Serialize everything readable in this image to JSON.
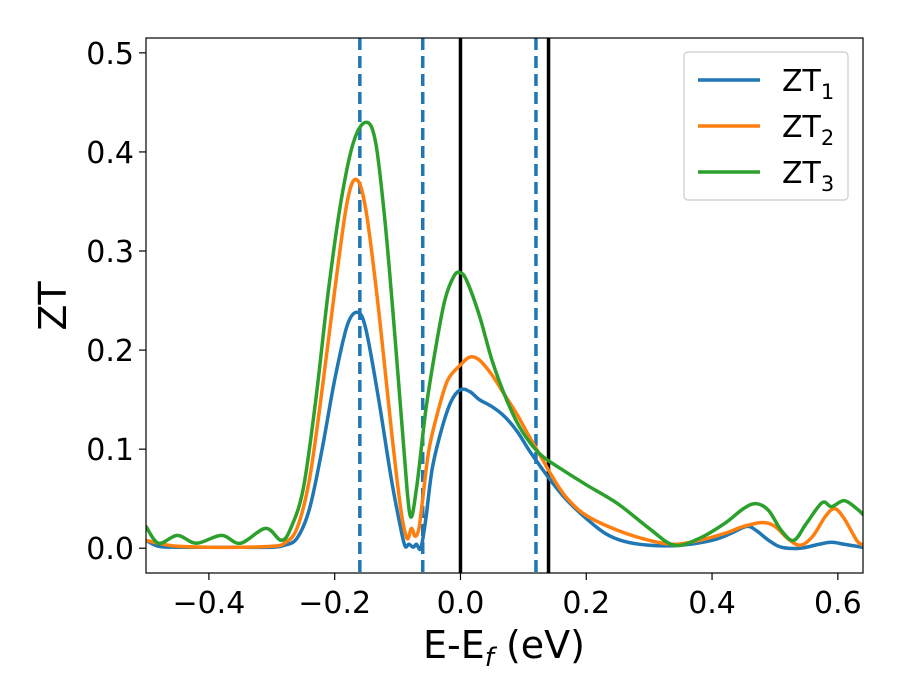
{
  "chart_data": {
    "type": "line",
    "title": "",
    "xlabel": {
      "main": "E-E",
      "sub": "f",
      "unit": " (eV)"
    },
    "ylabel": "ZT",
    "xlim": [
      -0.5,
      0.64
    ],
    "ylim": [
      -0.025,
      0.515
    ],
    "xticks": [
      -0.4,
      -0.2,
      0.0,
      0.2,
      0.4,
      0.6
    ],
    "xtick_labels": [
      "−0.4",
      "−0.2",
      "0.0",
      "0.2",
      "0.4",
      "0.6"
    ],
    "yticks": [
      0.0,
      0.1,
      0.2,
      0.3,
      0.4,
      0.5
    ],
    "ytick_labels": [
      "0.0",
      "0.1",
      "0.2",
      "0.3",
      "0.4",
      "0.5"
    ],
    "grid": false,
    "legend": "top-right",
    "series": [
      {
        "name": "ZT",
        "subscript": "1",
        "color": "#1f77b4",
        "points": [
          [
            -0.5,
            0.008
          ],
          [
            -0.48,
            0.002
          ],
          [
            -0.45,
            0.001
          ],
          [
            -0.4,
            0.001
          ],
          [
            -0.35,
            0.001
          ],
          [
            -0.3,
            0.001
          ],
          [
            -0.28,
            0.003
          ],
          [
            -0.26,
            0.01
          ],
          [
            -0.24,
            0.04
          ],
          [
            -0.22,
            0.1
          ],
          [
            -0.2,
            0.17
          ],
          [
            -0.18,
            0.225
          ],
          [
            -0.163,
            0.238
          ],
          [
            -0.15,
            0.22
          ],
          [
            -0.13,
            0.15
          ],
          [
            -0.11,
            0.07
          ],
          [
            -0.095,
            0.02
          ],
          [
            -0.088,
            0.002
          ],
          [
            -0.082,
            0.004
          ],
          [
            -0.075,
            0.001
          ],
          [
            -0.07,
            0.004
          ],
          [
            -0.063,
            0.0
          ],
          [
            -0.055,
            0.03
          ],
          [
            -0.045,
            0.08
          ],
          [
            -0.03,
            0.12
          ],
          [
            -0.015,
            0.148
          ],
          [
            0.0,
            0.16
          ],
          [
            0.015,
            0.158
          ],
          [
            0.03,
            0.15
          ],
          [
            0.05,
            0.143
          ],
          [
            0.07,
            0.133
          ],
          [
            0.09,
            0.118
          ],
          [
            0.11,
            0.098
          ],
          [
            0.13,
            0.08
          ],
          [
            0.15,
            0.063
          ],
          [
            0.17,
            0.048
          ],
          [
            0.2,
            0.03
          ],
          [
            0.23,
            0.015
          ],
          [
            0.26,
            0.007
          ],
          [
            0.3,
            0.003
          ],
          [
            0.35,
            0.003
          ],
          [
            0.4,
            0.008
          ],
          [
            0.43,
            0.015
          ],
          [
            0.455,
            0.022
          ],
          [
            0.47,
            0.018
          ],
          [
            0.49,
            0.008
          ],
          [
            0.51,
            0.001
          ],
          [
            0.54,
            0.0
          ],
          [
            0.57,
            0.004
          ],
          [
            0.59,
            0.006
          ],
          [
            0.61,
            0.004
          ],
          [
            0.64,
            0.001
          ]
        ]
      },
      {
        "name": "ZT",
        "subscript": "2",
        "color": "#ff7f0e",
        "points": [
          [
            -0.5,
            0.008
          ],
          [
            -0.48,
            0.005
          ],
          [
            -0.45,
            0.002
          ],
          [
            -0.4,
            0.001
          ],
          [
            -0.35,
            0.001
          ],
          [
            -0.3,
            0.002
          ],
          [
            -0.28,
            0.005
          ],
          [
            -0.26,
            0.02
          ],
          [
            -0.24,
            0.07
          ],
          [
            -0.22,
            0.16
          ],
          [
            -0.2,
            0.26
          ],
          [
            -0.18,
            0.35
          ],
          [
            -0.165,
            0.372
          ],
          [
            -0.15,
            0.34
          ],
          [
            -0.13,
            0.24
          ],
          [
            -0.11,
            0.12
          ],
          [
            -0.095,
            0.04
          ],
          [
            -0.085,
            0.01
          ],
          [
            -0.078,
            0.02
          ],
          [
            -0.072,
            0.012
          ],
          [
            -0.066,
            0.02
          ],
          [
            -0.06,
            0.05
          ],
          [
            -0.05,
            0.1
          ],
          [
            -0.035,
            0.14
          ],
          [
            -0.02,
            0.17
          ],
          [
            0.0,
            0.185
          ],
          [
            0.015,
            0.193
          ],
          [
            0.03,
            0.19
          ],
          [
            0.05,
            0.175
          ],
          [
            0.07,
            0.155
          ],
          [
            0.09,
            0.135
          ],
          [
            0.11,
            0.112
          ],
          [
            0.13,
            0.09
          ],
          [
            0.15,
            0.068
          ],
          [
            0.17,
            0.05
          ],
          [
            0.2,
            0.033
          ],
          [
            0.25,
            0.018
          ],
          [
            0.3,
            0.008
          ],
          [
            0.34,
            0.004
          ],
          [
            0.38,
            0.008
          ],
          [
            0.42,
            0.015
          ],
          [
            0.45,
            0.022
          ],
          [
            0.48,
            0.026
          ],
          [
            0.5,
            0.022
          ],
          [
            0.52,
            0.01
          ],
          [
            0.54,
            0.003
          ],
          [
            0.56,
            0.012
          ],
          [
            0.58,
            0.032
          ],
          [
            0.595,
            0.04
          ],
          [
            0.61,
            0.03
          ],
          [
            0.63,
            0.008
          ],
          [
            0.64,
            0.003
          ]
        ]
      },
      {
        "name": "ZT",
        "subscript": "3",
        "color": "#2ca02c",
        "points": [
          [
            -0.5,
            0.022
          ],
          [
            -0.48,
            0.005
          ],
          [
            -0.45,
            0.013
          ],
          [
            -0.42,
            0.005
          ],
          [
            -0.38,
            0.013
          ],
          [
            -0.35,
            0.005
          ],
          [
            -0.31,
            0.02
          ],
          [
            -0.285,
            0.008
          ],
          [
            -0.27,
            0.02
          ],
          [
            -0.25,
            0.06
          ],
          [
            -0.23,
            0.15
          ],
          [
            -0.21,
            0.26
          ],
          [
            -0.19,
            0.35
          ],
          [
            -0.17,
            0.41
          ],
          [
            -0.15,
            0.43
          ],
          [
            -0.135,
            0.41
          ],
          [
            -0.12,
            0.33
          ],
          [
            -0.105,
            0.22
          ],
          [
            -0.09,
            0.1
          ],
          [
            -0.08,
            0.033
          ],
          [
            -0.07,
            0.06
          ],
          [
            -0.055,
            0.14
          ],
          [
            -0.04,
            0.2
          ],
          [
            -0.025,
            0.25
          ],
          [
            -0.01,
            0.275
          ],
          [
            0.0,
            0.278
          ],
          [
            0.01,
            0.27
          ],
          [
            0.03,
            0.235
          ],
          [
            0.05,
            0.19
          ],
          [
            0.07,
            0.155
          ],
          [
            0.09,
            0.127
          ],
          [
            0.11,
            0.107
          ],
          [
            0.13,
            0.093
          ],
          [
            0.16,
            0.08
          ],
          [
            0.2,
            0.064
          ],
          [
            0.25,
            0.045
          ],
          [
            0.3,
            0.02
          ],
          [
            0.34,
            0.003
          ],
          [
            0.38,
            0.01
          ],
          [
            0.42,
            0.025
          ],
          [
            0.45,
            0.04
          ],
          [
            0.47,
            0.045
          ],
          [
            0.49,
            0.038
          ],
          [
            0.51,
            0.018
          ],
          [
            0.53,
            0.008
          ],
          [
            0.55,
            0.025
          ],
          [
            0.575,
            0.046
          ],
          [
            0.59,
            0.042
          ],
          [
            0.61,
            0.048
          ],
          [
            0.63,
            0.04
          ],
          [
            0.64,
            0.034
          ]
        ]
      }
    ],
    "vlines": [
      {
        "x": -0.16,
        "style": "dashed",
        "color": "#1f77b4"
      },
      {
        "x": -0.06,
        "style": "dashed",
        "color": "#1f77b4"
      },
      {
        "x": 0.12,
        "style": "dashed",
        "color": "#1f77b4"
      },
      {
        "x": 0.0,
        "style": "solid",
        "color": "#000000"
      },
      {
        "x": 0.14,
        "style": "solid",
        "color": "#000000"
      }
    ]
  }
}
